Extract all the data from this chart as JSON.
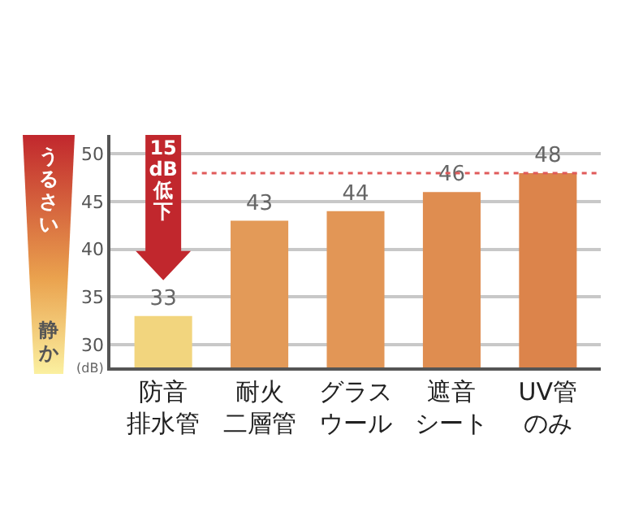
{
  "chart_data": {
    "type": "bar",
    "categories": [
      "防音排水管",
      "耐火二層管",
      "グラスウール",
      "遮音シート",
      "UV管のみ"
    ],
    "values": [
      33,
      43,
      44,
      46,
      48
    ],
    "colors": [
      "#f2d57e",
      "#e39a58",
      "#e29656",
      "#df8d50",
      "#dc844b"
    ],
    "ylim": [
      27.6,
      52
    ],
    "yticks": [
      30,
      35,
      40,
      45,
      50
    ],
    "ylabel": "(dB)",
    "grid": "y",
    "data_labels": true,
    "ref_lines": [
      {
        "axis": "y",
        "value": 48,
        "color": "#e05a5a",
        "line_style": "dotted"
      }
    ],
    "annotations": [
      "15 dB 低下",
      "うるさい",
      "静か"
    ]
  }
}
